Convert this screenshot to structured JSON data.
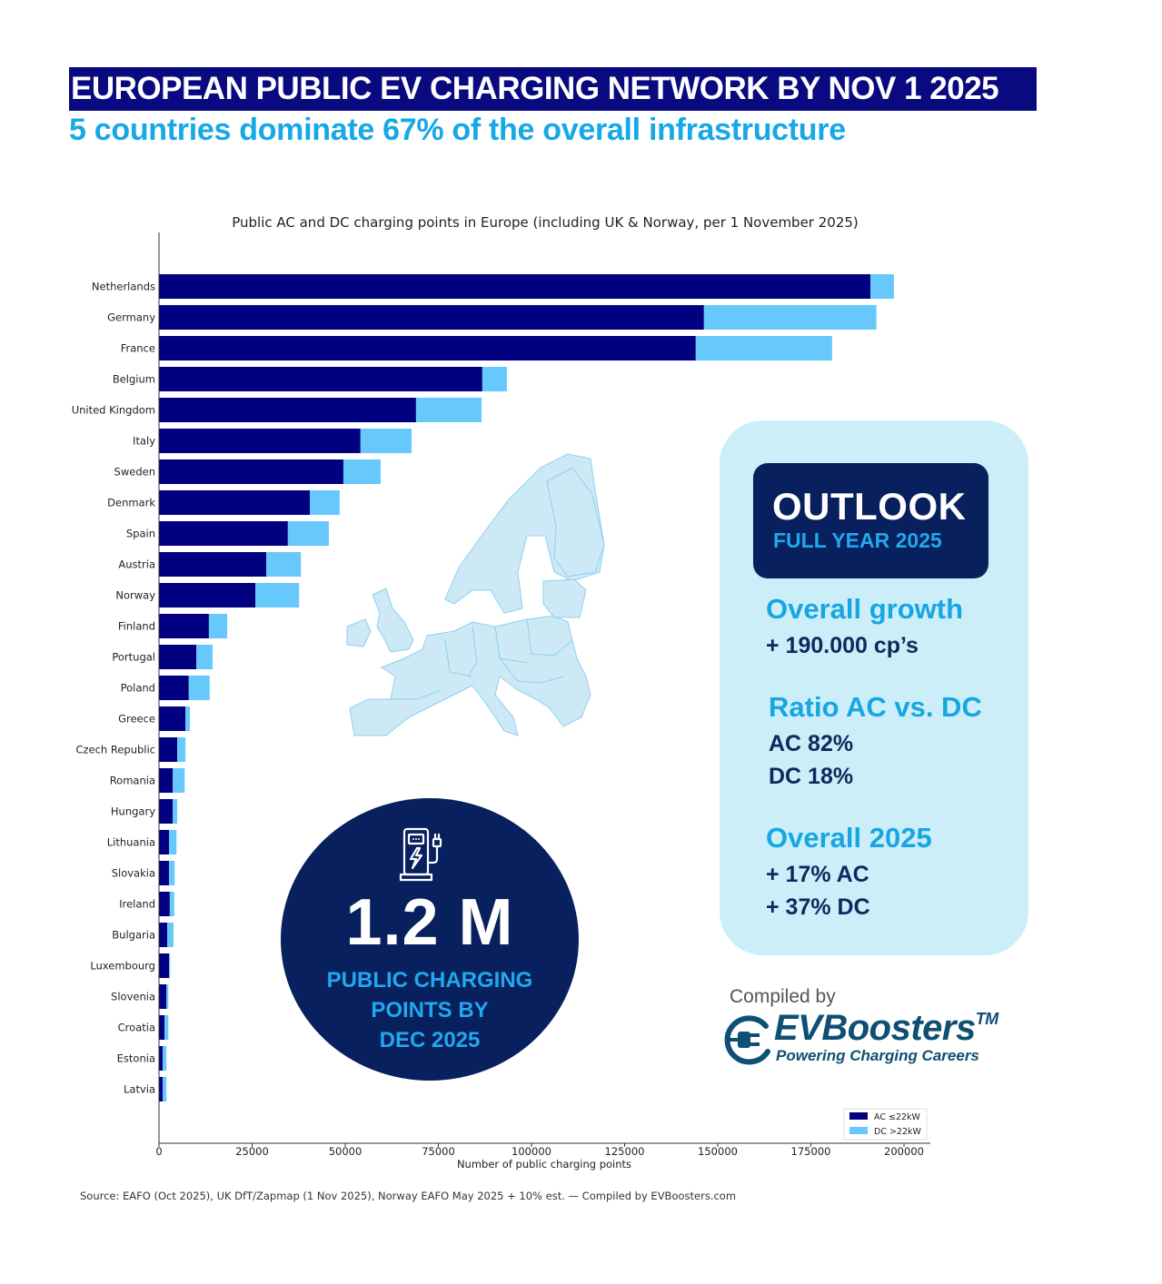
{
  "header": {
    "title": "EUROPEAN PUBLIC EV CHARGING NETWORK  BY NOV 1 2025",
    "subtitle": "5 countries dominate 67% of the overall infrastructure"
  },
  "colors": {
    "ac": "#000080",
    "dc": "#66c8fb",
    "title_bg": "#0a0a80",
    "accent": "#17a8e6",
    "navy": "#08205e",
    "panel_bg": "#cbeef9",
    "map_fill": "#cde9f5",
    "map_stroke": "#8fd0f0"
  },
  "chart_data": {
    "type": "bar",
    "orientation": "horizontal",
    "stacked": true,
    "title": "Public AC and DC charging points in Europe (including UK & Norway, per 1 November 2025)",
    "xlabel": "Number of public charging points",
    "ylabel": "",
    "xlim": [
      0,
      207000
    ],
    "xticks": [
      0,
      25000,
      50000,
      75000,
      100000,
      125000,
      150000,
      175000,
      200000
    ],
    "xtick_labels": [
      "0",
      "25000",
      "50000",
      "75000",
      "100000",
      "125000",
      "150000",
      "175000",
      "200000"
    ],
    "grid": false,
    "legend_position": "bottom-right",
    "categories": [
      "Netherlands",
      "Germany",
      "France",
      "Belgium",
      "United Kingdom",
      "Italy",
      "Sweden",
      "Denmark",
      "Spain",
      "Austria",
      "Norway",
      "Finland",
      "Portugal",
      "Poland",
      "Greece",
      "Czech Republic",
      "Romania",
      "Hungary",
      "Lithuania",
      "Slovakia",
      "Ireland",
      "Bulgaria",
      "Luxembourg",
      "Slovenia",
      "Croatia",
      "Estonia",
      "Latvia"
    ],
    "series": [
      {
        "name": "AC ≤22kW",
        "color": "#000080",
        "values": [
          191000,
          146300,
          144100,
          86800,
          69000,
          54100,
          49500,
          40500,
          34600,
          28800,
          25900,
          13400,
          10000,
          8000,
          7100,
          4900,
          3700,
          3700,
          2700,
          2700,
          2900,
          2200,
          2700,
          2000,
          1500,
          1000,
          1000
        ]
      },
      {
        "name": "DC >22kW",
        "color": "#66c8fb",
        "values": [
          6300,
          46300,
          36600,
          6600,
          17600,
          13700,
          10000,
          8000,
          11000,
          9300,
          11700,
          4900,
          4400,
          5600,
          1200,
          2200,
          3200,
          1200,
          2000,
          1500,
          1200,
          1700,
          300,
          500,
          1000,
          1000,
          1000
        ]
      }
    ]
  },
  "outlook": {
    "title": "OUTLOOK",
    "subtitle": "FULL YEAR 2025",
    "sections": [
      {
        "heading": "Overall growth",
        "lines": [
          "+ 190.000 cp’s"
        ]
      },
      {
        "heading": "Ratio AC vs. DC",
        "lines": [
          "AC  82%",
          "DC 18%"
        ]
      },
      {
        "heading": "Overall 2025",
        "lines": [
          "+ 17% AC",
          "+ 37% DC"
        ]
      }
    ]
  },
  "highlight": {
    "icon": "ev-charger-icon",
    "value": "1.2 M",
    "lines": [
      "PUBLIC CHARGING",
      "POINTS BY",
      "DEC 2025"
    ]
  },
  "brand": {
    "compiled_by": "Compiled by",
    "name": "EVBoosters",
    "tm": "TM",
    "tagline": "Powering Charging Careers",
    "icon": "plug-logo-icon"
  },
  "source": "Source: EAFO (Oct 2025), UK DfT/Zapmap (1 Nov 2025), Norway EAFO May 2025 + 10% est. — Compiled by EVBoosters.com",
  "map": {
    "icon": "europe-map-icon"
  }
}
